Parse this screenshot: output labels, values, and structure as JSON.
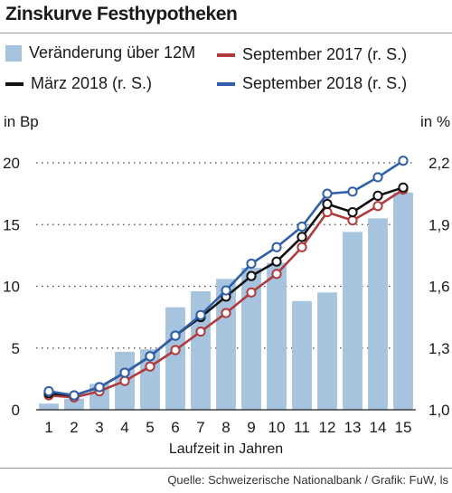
{
  "title": "Zinskurve Festhypotheken",
  "legend": {
    "bar_label": "Veränderung über 12M",
    "sep2017_label": "September 2017 (r. S.)",
    "mar2018_label": "März 2018 (r. S.)",
    "sep2018_label": "September 2018 (r. S.)"
  },
  "left_unit": "in Bp",
  "right_unit": "in %",
  "source": "Quelle: Schweizerische Nationalbank / Grafik: FuW, ls",
  "colors": {
    "bar": "#a7c4df",
    "sep2017": "#b13a3c",
    "mar2018": "#111111",
    "sep2018": "#2f5fa8"
  },
  "chart_data": {
    "type": "bar",
    "xlabel": "Laufzeit in Jahren",
    "ylabel": "in Bp",
    "ylabel_right": "in %",
    "categories": [
      "1",
      "2",
      "3",
      "4",
      "5",
      "6",
      "7",
      "8",
      "9",
      "10",
      "11",
      "12",
      "13",
      "14",
      "15"
    ],
    "ylim": [
      0,
      20
    ],
    "yticks": [
      0,
      5,
      10,
      15,
      20
    ],
    "ylim_right": [
      1.0,
      2.2
    ],
    "yticks_right": [
      "1,0",
      "1,3",
      "1,6",
      "1,9",
      "2,2"
    ],
    "yticks_right_values": [
      1.0,
      1.3,
      1.6,
      1.9,
      2.2
    ],
    "grid": "dotted horizontal",
    "series": [
      {
        "name": "Veränderung über 12M",
        "type": "bar",
        "axis": "left",
        "values": [
          0.5,
          0.9,
          2.1,
          4.7,
          4.9,
          8.3,
          9.6,
          10.6,
          11.5,
          11.9,
          8.8,
          9.5,
          14.4,
          15.5,
          17.6
        ]
      },
      {
        "name": "September 2017 (r. S.)",
        "type": "line",
        "axis": "right",
        "values": [
          1.07,
          1.06,
          1.09,
          1.14,
          1.21,
          1.29,
          1.38,
          1.47,
          1.57,
          1.66,
          1.79,
          1.96,
          1.92,
          1.99,
          2.07
        ]
      },
      {
        "name": "März 2018 (r. S.)",
        "type": "line",
        "axis": "right",
        "values": [
          1.08,
          1.07,
          1.11,
          1.18,
          1.26,
          1.36,
          1.45,
          1.55,
          1.65,
          1.72,
          1.84,
          2.0,
          1.96,
          2.04,
          2.08
        ]
      },
      {
        "name": "September 2018 (r. S.)",
        "type": "line",
        "axis": "right",
        "values": [
          1.09,
          1.07,
          1.11,
          1.18,
          1.26,
          1.36,
          1.46,
          1.58,
          1.71,
          1.79,
          1.89,
          2.05,
          2.06,
          2.13,
          2.21
        ]
      }
    ]
  }
}
